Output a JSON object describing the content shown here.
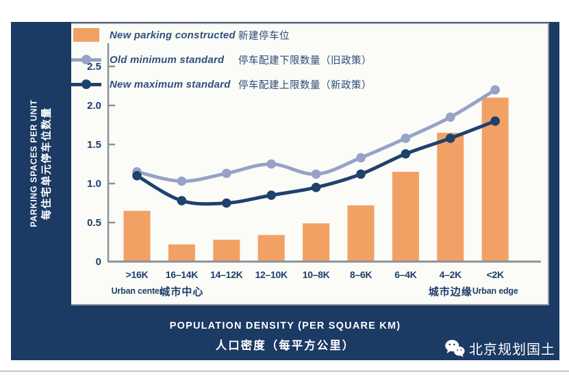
{
  "panel": {
    "background": "#1b3a64"
  },
  "chart_data": {
    "type": "bar+line",
    "title": "",
    "categories": [
      ">16K",
      "16–14K",
      "14–12K",
      "12–10K",
      "10–8K",
      "8–6K",
      "6–4K",
      "4–2K",
      "<2K"
    ],
    "category_sublabels": [
      "Urban center",
      "城市中心",
      "",
      "",
      "",
      "",
      "",
      "城市边缘",
      "Urban edge"
    ],
    "series": [
      {
        "name": "New parking constructed",
        "name_zh": "新建停车位",
        "type": "bar",
        "color": "#f2a164",
        "values": [
          0.65,
          0.22,
          0.28,
          0.34,
          0.49,
          0.72,
          1.15,
          1.65,
          2.1
        ]
      },
      {
        "name": "Old minimum standard",
        "name_zh": "停车配建下限数量（旧政策）",
        "type": "line",
        "color": "#96a2c6",
        "values": [
          1.15,
          1.03,
          1.13,
          1.25,
          1.12,
          1.33,
          1.58,
          1.85,
          2.2
        ]
      },
      {
        "name": "New maximum standard",
        "name_zh": "停车配建上限数量（新政策）",
        "type": "line",
        "color": "#1f416d",
        "values": [
          1.1,
          0.78,
          0.75,
          0.85,
          0.95,
          1.12,
          1.38,
          1.58,
          1.8
        ]
      }
    ],
    "ylabel": "PARKING SPACES PER UNIT",
    "ylabel_zh": "每住宅单元停车位数量",
    "xlabel": "POPULATION DENSITY (PER SQUARE KM)",
    "xlabel_zh": "人口密度（每平方公里）",
    "yticks": [
      0,
      0.5,
      1.0,
      1.5,
      2.0,
      2.5
    ],
    "ylim": [
      0,
      2.7
    ],
    "grid": false,
    "legend_position": "top-left-inside",
    "axis_color": "#8a9199",
    "tick_label_color": "#1e3e6a"
  },
  "footer": {
    "logo_text": "北京规划国土",
    "icon": "wechat-icon"
  }
}
